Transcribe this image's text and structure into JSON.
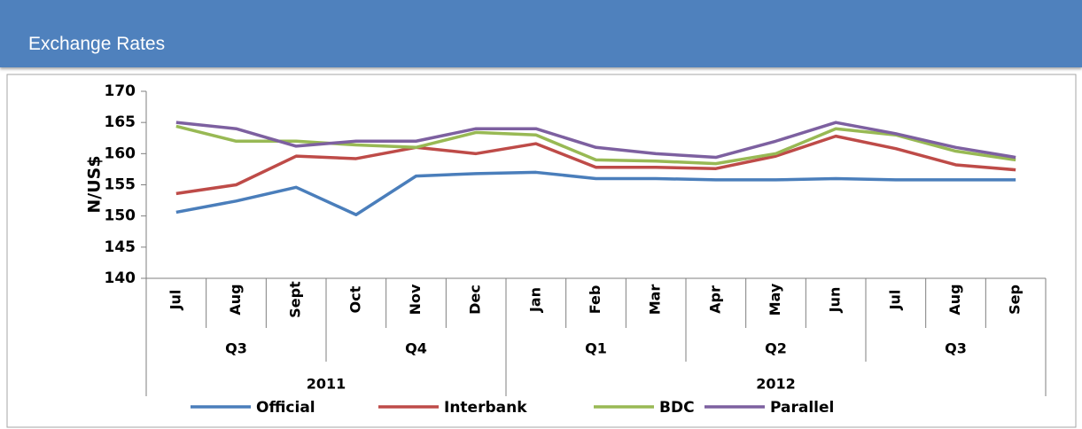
{
  "title": "Exchange Rates",
  "chart_data": {
    "type": "line",
    "y_label": "N/US$",
    "categories": [
      "Jul",
      "Aug",
      "Sept",
      "Oct",
      "Nov",
      "Dec",
      "Jan",
      "Feb",
      "Mar",
      "Apr",
      "May",
      "Jun",
      "Jul",
      "Aug",
      "Sep"
    ],
    "quarters": [
      {
        "label": "Q3",
        "span": 3
      },
      {
        "label": "Q4",
        "span": 3
      },
      {
        "label": "Q1",
        "span": 3
      },
      {
        "label": "Q2",
        "span": 3
      },
      {
        "label": "Q3",
        "span": 3
      }
    ],
    "years": [
      {
        "label": "2011",
        "span": 6
      },
      {
        "label": "2012",
        "span": 9
      }
    ],
    "series": [
      {
        "name": "Official",
        "color": "#4a7ebb",
        "values": [
          150.6,
          152.4,
          154.6,
          150.2,
          156.4,
          156.8,
          157.0,
          156.0,
          156.0,
          155.8,
          155.8,
          156.0,
          155.8,
          155.8,
          155.8
        ]
      },
      {
        "name": "Interbank",
        "color": "#be4b48",
        "values": [
          153.6,
          155.0,
          159.6,
          159.2,
          161.0,
          160.0,
          161.6,
          157.8,
          157.8,
          157.6,
          159.6,
          162.8,
          160.8,
          158.2,
          157.4
        ]
      },
      {
        "name": "BDC",
        "color": "#98b954",
        "values": [
          164.4,
          162.0,
          162.0,
          161.4,
          161.0,
          163.4,
          163.0,
          159.0,
          158.8,
          158.4,
          160.0,
          164.0,
          163.0,
          160.4,
          159.0
        ]
      },
      {
        "name": "Parallel",
        "color": "#7d60a0",
        "values": [
          165.0,
          164.0,
          161.2,
          162.0,
          162.0,
          164.0,
          164.0,
          161.0,
          160.0,
          159.4,
          162.0,
          165.0,
          163.2,
          161.0,
          159.4
        ]
      }
    ],
    "ylim": [
      140,
      170
    ],
    "yticks": [
      140,
      145,
      150,
      155,
      160,
      165,
      170
    ],
    "grid": false,
    "legend": "bottom"
  }
}
